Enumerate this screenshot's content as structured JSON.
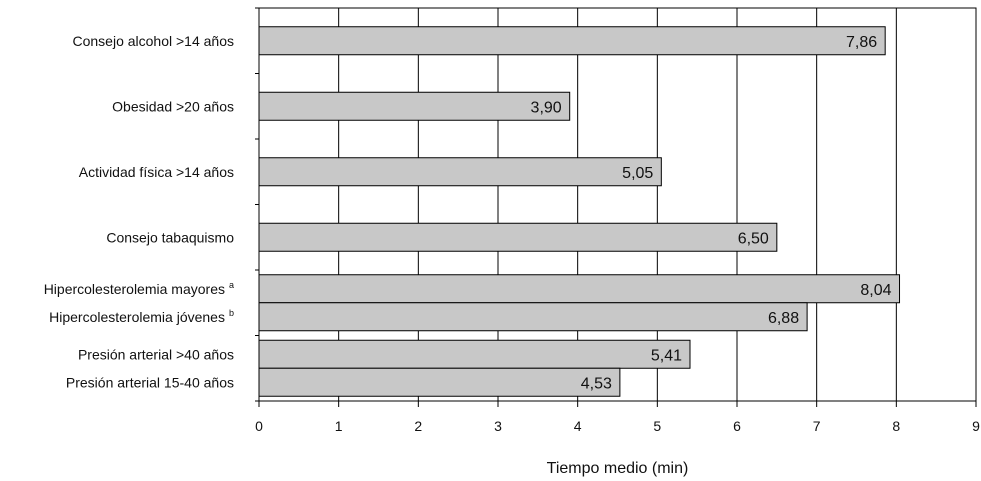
{
  "chart_data": {
    "type": "bar",
    "orientation": "horizontal",
    "xlabel": "Tiempo medio (min)",
    "xlim": [
      0,
      9
    ],
    "xticks": [
      0,
      1,
      2,
      3,
      4,
      5,
      6,
      7,
      8,
      9
    ],
    "grid": "vertical",
    "bar_color": "#c8c8c8",
    "groups": [
      {
        "bars": [
          {
            "label": "Consejo alcohol >14 años",
            "sup": "",
            "value": 7.86,
            "value_label": "7,86"
          }
        ]
      },
      {
        "bars": [
          {
            "label": "Obesidad >20 años",
            "sup": "",
            "value": 3.9,
            "value_label": "3,90"
          }
        ]
      },
      {
        "bars": [
          {
            "label": "Actividad física >14 años",
            "sup": "",
            "value": 5.05,
            "value_label": "5,05"
          }
        ]
      },
      {
        "bars": [
          {
            "label": "Consejo tabaquismo",
            "sup": "",
            "value": 6.5,
            "value_label": "6,50"
          }
        ]
      },
      {
        "bars": [
          {
            "label": "Hipercolesterolemia mayores",
            "sup": "a",
            "value": 8.04,
            "value_label": "8,04"
          },
          {
            "label": "Hipercolesterolemia jóvenes",
            "sup": "b",
            "value": 6.88,
            "value_label": "6,88"
          }
        ]
      },
      {
        "bars": [
          {
            "label": "Presión arterial >40 años",
            "sup": "",
            "value": 5.41,
            "value_label": "5,41"
          },
          {
            "label": "Presión arterial 15-40 años",
            "sup": "",
            "value": 4.53,
            "value_label": "4,53"
          }
        ]
      }
    ]
  }
}
